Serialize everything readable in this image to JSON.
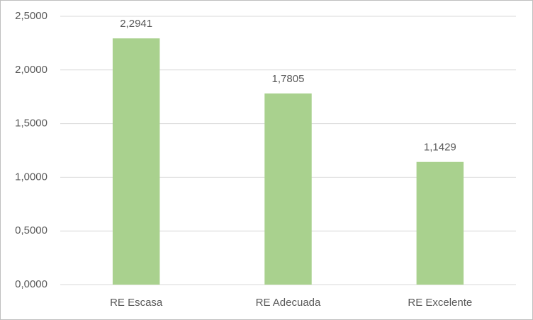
{
  "chart_data": {
    "type": "bar",
    "categories": [
      "RE Escasa",
      "RE Adecuada",
      "RE Excelente"
    ],
    "values": [
      2.2941,
      1.7805,
      1.1429
    ],
    "value_labels": [
      "2,2941",
      "1,7805",
      "1,1429"
    ],
    "color": "#a9d18e",
    "ylim": [
      0,
      2.5
    ],
    "yticks": [
      {
        "value": 0,
        "label": "0,0000"
      },
      {
        "value": 0.5,
        "label": "0,5000"
      },
      {
        "value": 1,
        "label": "1,0000"
      },
      {
        "value": 1.5,
        "label": "1,5000"
      },
      {
        "value": 2,
        "label": "2,0000"
      },
      {
        "value": 2.5,
        "label": "2,5000"
      }
    ],
    "grid": true
  }
}
